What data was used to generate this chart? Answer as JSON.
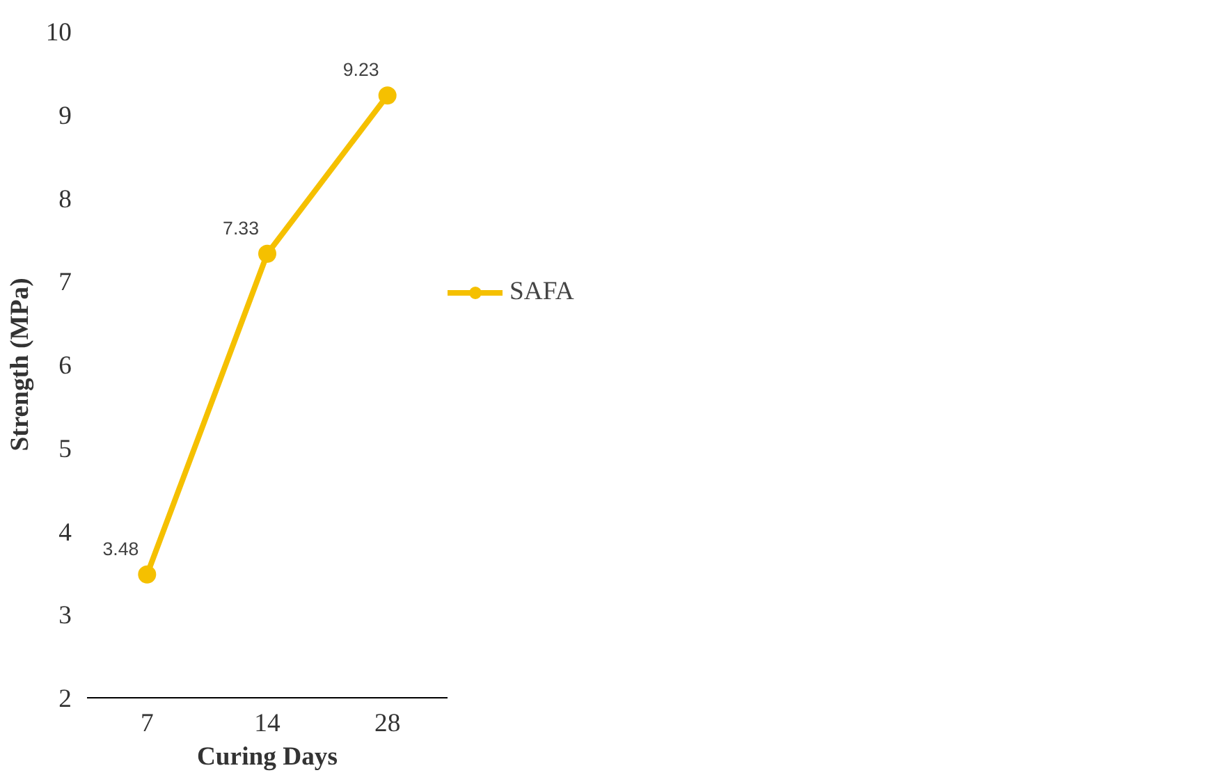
{
  "chart_data": {
    "type": "line",
    "xlabel": "Curing Days",
    "ylabel": "Strength (MPa)",
    "categories": [
      "7",
      "14",
      "28"
    ],
    "series": [
      {
        "name": "SAFA",
        "color": "#f5c000",
        "values": [
          3.48,
          7.33,
          9.23
        ]
      }
    ],
    "ylim": [
      2,
      10
    ],
    "yticks": [
      2,
      3,
      4,
      5,
      6,
      7,
      8,
      9,
      10
    ],
    "grid": false,
    "legend": "right",
    "marker": "circle",
    "line_style": "solid",
    "data_labels": true
  }
}
